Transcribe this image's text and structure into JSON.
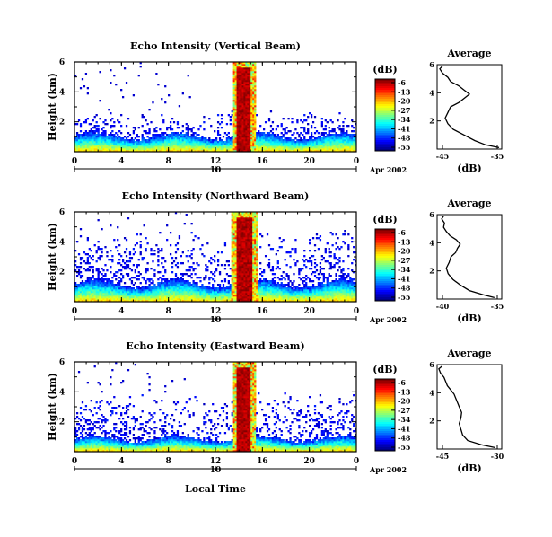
{
  "figure": {
    "xlabel": "Local Time",
    "date_label": "Apr 2002"
  },
  "chart_data": [
    {
      "type": "heatmap",
      "title": "Echo Intensity (Vertical Beam)",
      "ylabel": "Height (km)",
      "xlim": [
        0,
        24
      ],
      "ylim": [
        0,
        6
      ],
      "x_ticks": [
        "0",
        "4",
        "8",
        "12",
        "16",
        "20",
        "0"
      ],
      "y_ticks": [
        "6",
        "4",
        "2"
      ],
      "day_label": "10",
      "colorbar": {
        "label": "(dB)",
        "ticks": [
          "-6",
          "-13",
          "-20",
          "-27",
          "-34",
          "-41",
          "-48",
          "-55"
        ]
      },
      "average": {
        "title": "Average",
        "xlabel": "(dB)",
        "x_ticks": [
          "-45",
          "-35"
        ],
        "xlim": [
          -46,
          -34
        ],
        "heights": [
          0.1,
          0.3,
          0.6,
          1.0,
          1.4,
          1.8,
          2.2,
          2.6,
          3.0,
          3.3,
          3.6,
          3.9,
          4.2,
          4.5,
          4.8,
          5.1,
          5.4,
          5.7,
          5.9
        ],
        "values": [
          -34.5,
          -37,
          -39,
          -41,
          -43,
          -44,
          -44.5,
          -44,
          -43.5,
          -42,
          -41,
          -40,
          -41,
          -42,
          -43.5,
          -44,
          -45,
          -45.5,
          -45
        ]
      },
      "profile": {
        "ground_top": 1.2,
        "cloud_x": [
          13.5,
          15.5
        ],
        "sparse_top": 2.8
      }
    },
    {
      "type": "heatmap",
      "title": "Echo Intensity (Northward Beam)",
      "ylabel": "Height (km)",
      "xlim": [
        0,
        24
      ],
      "ylim": [
        0,
        6
      ],
      "x_ticks": [
        "0",
        "4",
        "8",
        "12",
        "16",
        "20",
        "0"
      ],
      "y_ticks": [
        "6",
        "4",
        "2"
      ],
      "day_label": "10",
      "colorbar": {
        "label": "(dB)",
        "ticks": [
          "-6",
          "-13",
          "-20",
          "-27",
          "-34",
          "-41",
          "-48",
          "-55"
        ]
      },
      "average": {
        "title": "Average",
        "xlabel": "(dB)",
        "x_ticks": [
          "-40",
          "-35"
        ],
        "xlim": [
          -41,
          -34
        ],
        "heights": [
          0.1,
          0.3,
          0.6,
          1.0,
          1.4,
          1.8,
          2.2,
          2.6,
          3.0,
          3.3,
          3.6,
          3.9,
          4.2,
          4.5,
          4.8,
          5.1,
          5.4,
          5.7,
          5.9
        ],
        "values": [
          -34.8,
          -36,
          -37.5,
          -38.5,
          -39.3,
          -39.8,
          -40,
          -39.7,
          -39.5,
          -39,
          -38.8,
          -38.5,
          -38.9,
          -39.6,
          -40,
          -40.3,
          -40.2,
          -40.5,
          -40.3
        ]
      },
      "profile": {
        "ground_top": 1.4,
        "cloud_x": [
          13.4,
          15.6
        ],
        "sparse_top": 4.8
      }
    },
    {
      "type": "heatmap",
      "title": "Echo Intensity (Eastward Beam)",
      "ylabel": "Height (km)",
      "xlim": [
        0,
        24
      ],
      "ylim": [
        0,
        6
      ],
      "x_ticks": [
        "0",
        "4",
        "8",
        "12",
        "16",
        "20",
        "0"
      ],
      "y_ticks": [
        "6",
        "4",
        "2"
      ],
      "day_label": "10",
      "colorbar": {
        "label": "(dB)",
        "ticks": [
          "-6",
          "-13",
          "-20",
          "-27",
          "-34",
          "-41",
          "-48",
          "-55"
        ]
      },
      "average": {
        "title": "Average",
        "xlabel": "(dB)",
        "x_ticks": [
          "-45",
          "-30"
        ],
        "xlim": [
          -47,
          -28
        ],
        "heights": [
          0.1,
          0.3,
          0.6,
          1.0,
          1.4,
          1.8,
          2.2,
          2.6,
          3.0,
          3.3,
          3.6,
          3.9,
          4.2,
          4.5,
          4.8,
          5.1,
          5.4,
          5.7,
          5.9
        ],
        "values": [
          -30,
          -34,
          -38,
          -39.5,
          -40,
          -40.5,
          -40,
          -39.8,
          -40.5,
          -41,
          -41.5,
          -42,
          -43,
          -44,
          -44.5,
          -45,
          -46,
          -46.5,
          -45.5
        ]
      },
      "profile": {
        "ground_top": 1.0,
        "cloud_x": [
          13.5,
          15.5
        ],
        "sparse_top": 4.0
      }
    }
  ]
}
